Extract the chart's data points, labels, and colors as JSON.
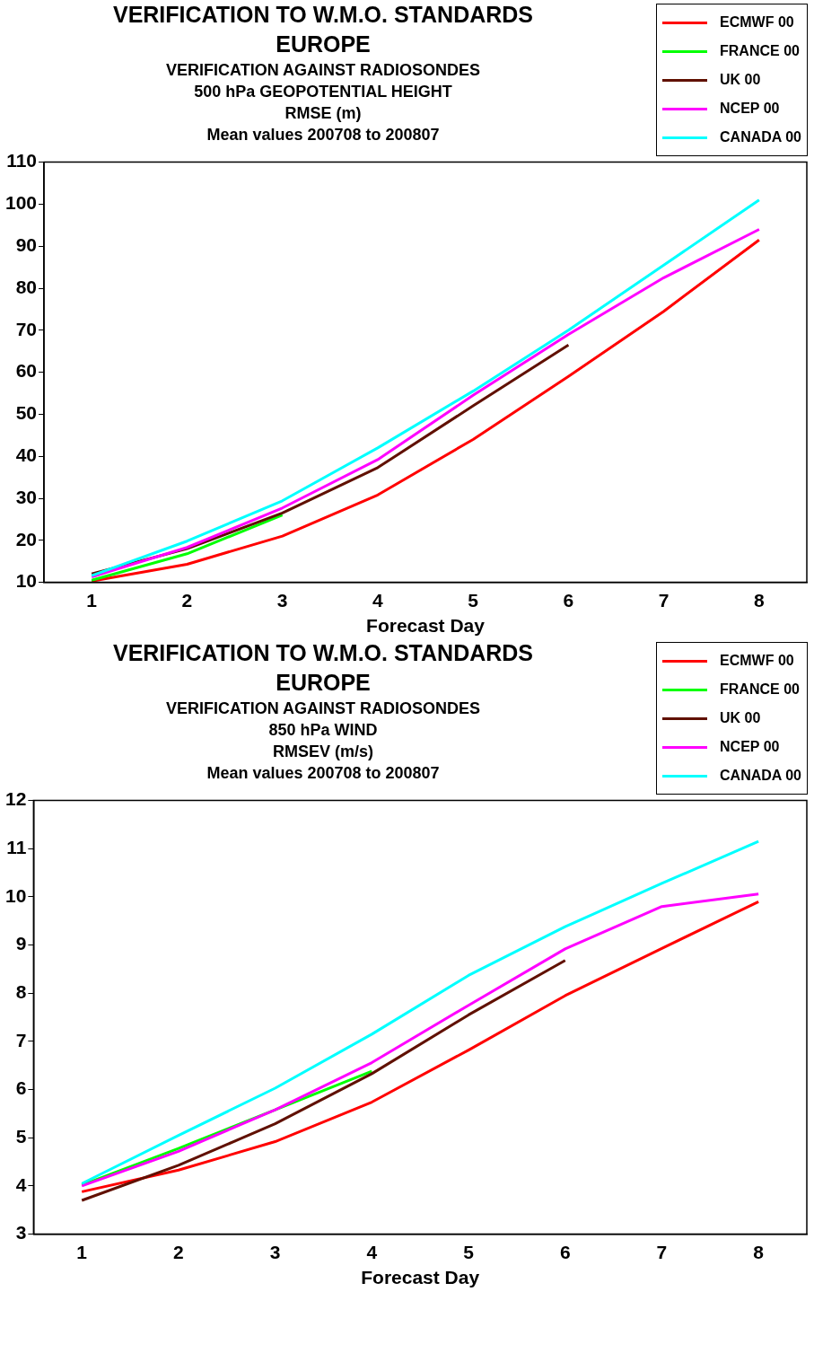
{
  "chart_data": [
    {
      "type": "line",
      "title": "VERIFICATION TO W.M.O. STANDARDS\nEUROPE",
      "subtitle": "VERIFICATION AGAINST RADIOSONDES\n500 hPa GEOPOTENTIAL HEIGHT\nRMSE (m)\nMean values 200708 to 200807",
      "xlabel": "Forecast Day",
      "x": [
        1,
        2,
        3,
        4,
        5,
        6,
        7,
        8
      ],
      "xlim": [
        0.5,
        8.5
      ],
      "xticks": [
        1,
        2,
        3,
        4,
        5,
        6,
        7,
        8
      ],
      "ylim": [
        10,
        110
      ],
      "yticks": [
        10,
        20,
        30,
        40,
        50,
        60,
        70,
        80,
        90,
        100,
        110
      ],
      "grid": false,
      "legend": "top right",
      "marker": "none",
      "line_style": "solid",
      "series": [
        {
          "name": "ECMWF 00",
          "color": "#ff0000",
          "values": [
            10.3,
            14.3,
            21,
            30.8,
            44,
            59,
            74.5,
            91.5
          ]
        },
        {
          "name": "FRANCE 00",
          "color": "#00ff00",
          "values": [
            10.5,
            16.8,
            26,
            null,
            null,
            null,
            null,
            null
          ]
        },
        {
          "name": "UK 00",
          "color": "#601000",
          "values": [
            12,
            18,
            26.5,
            37.3,
            52,
            66.5,
            null,
            null
          ]
        },
        {
          "name": "NCEP 00",
          "color": "#ff00ff",
          "values": [
            11.3,
            18.3,
            27.7,
            39.2,
            54.5,
            69,
            82.5,
            94
          ]
        },
        {
          "name": "CANADA 00",
          "color": "#00ffff",
          "values": [
            11.6,
            19.8,
            29.4,
            42,
            55.5,
            70,
            85.5,
            101
          ]
        }
      ]
    },
    {
      "type": "line",
      "title": "VERIFICATION TO W.M.O. STANDARDS\nEUROPE",
      "subtitle": "VERIFICATION AGAINST RADIOSONDES\n850 hPa WIND\nRMSEV (m/s)\nMean values 200708 to 200807",
      "xlabel": "Forecast Day",
      "x": [
        1,
        2,
        3,
        4,
        5,
        6,
        7,
        8
      ],
      "xlim": [
        0.5,
        8.5
      ],
      "xticks": [
        1,
        2,
        3,
        4,
        5,
        6,
        7,
        8
      ],
      "ylim": [
        3,
        12
      ],
      "yticks": [
        3,
        4,
        5,
        6,
        7,
        8,
        9,
        10,
        11,
        12
      ],
      "grid": false,
      "legend": "top right",
      "marker": "none",
      "line_style": "solid",
      "series": [
        {
          "name": "ECMWF 00",
          "color": "#ff0000",
          "values": [
            3.88,
            4.33,
            4.92,
            5.74,
            6.82,
            7.95,
            8.93,
            9.9
          ]
        },
        {
          "name": "FRANCE 00",
          "color": "#00ff00",
          "values": [
            4.02,
            4.78,
            5.58,
            6.38,
            null,
            null,
            null,
            null
          ]
        },
        {
          "name": "UK 00",
          "color": "#601000",
          "values": [
            3.7,
            4.43,
            5.29,
            6.33,
            7.55,
            8.68,
            null,
            null
          ]
        },
        {
          "name": "NCEP 00",
          "color": "#ff00ff",
          "values": [
            4.0,
            4.72,
            5.58,
            6.56,
            7.75,
            8.92,
            9.8,
            10.06
          ]
        },
        {
          "name": "CANADA 00",
          "color": "#00ffff",
          "values": [
            4.05,
            5.05,
            6.03,
            7.15,
            8.37,
            9.38,
            10.28,
            11.15
          ]
        }
      ]
    }
  ]
}
